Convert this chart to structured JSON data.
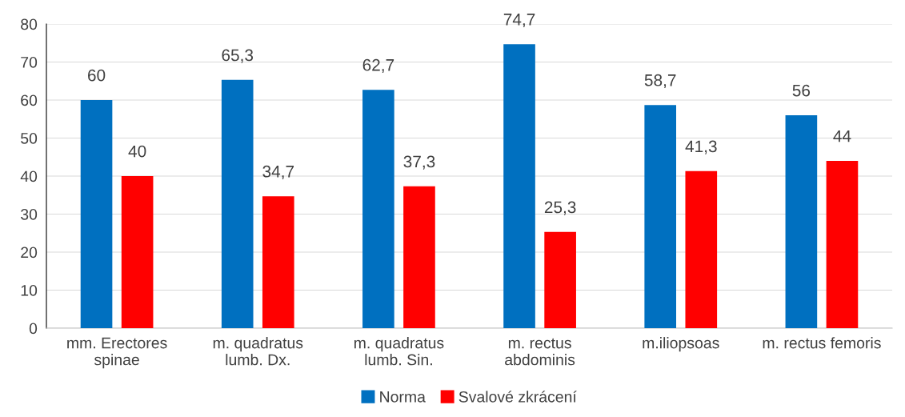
{
  "chart_data": {
    "type": "bar",
    "categories": [
      "mm. Erectores\nspinae",
      "m. quadratus\nlumb. Dx.",
      "m. quadratus\nlumb. Sin.",
      "m. rectus\nabdominis",
      "m.iliopsoas",
      "m. rectus femoris"
    ],
    "series": [
      {
        "name": "Norma",
        "color": "#0070c0",
        "values": [
          60,
          65.3,
          62.7,
          74.7,
          58.7,
          56
        ],
        "value_labels": [
          "60",
          "65,3",
          "62,7",
          "74,7",
          "58,7",
          "56"
        ]
      },
      {
        "name": "Svalové zkrácení",
        "color": "#ff0000",
        "values": [
          40,
          34.7,
          37.3,
          25.3,
          41.3,
          44
        ],
        "value_labels": [
          "40",
          "34,7",
          "37,3",
          "25,3",
          "41,3",
          "44"
        ]
      }
    ],
    "ylim": [
      0,
      80
    ],
    "yticks": [
      0,
      10,
      20,
      30,
      40,
      50,
      60,
      70,
      80
    ],
    "grid": "y",
    "legend": "bottom"
  }
}
